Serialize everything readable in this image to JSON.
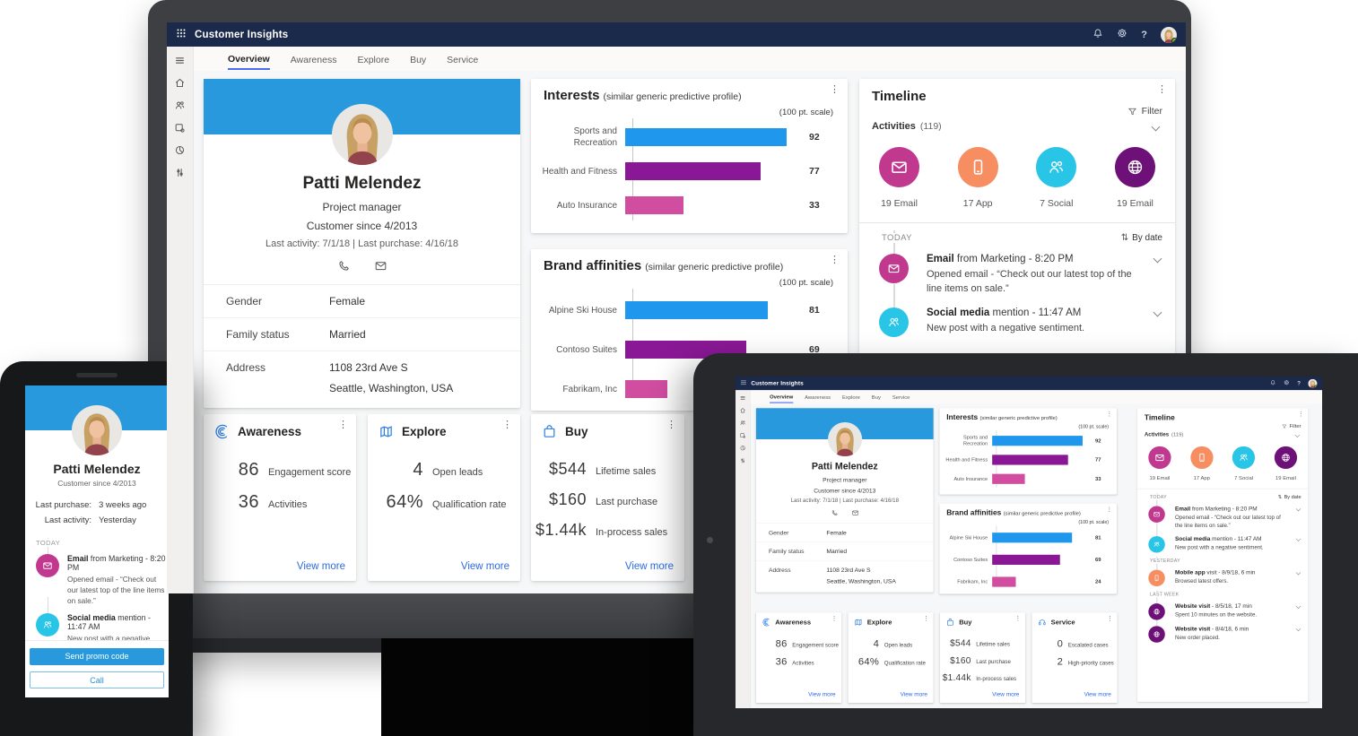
{
  "colors": {
    "navbar_bg": "#1b2a4a",
    "accent_blue": "#2899dc",
    "link_blue": "#2b6be4",
    "tab_underline": "#4f6bed",
    "bar_blue": "#1e97ec",
    "bar_purple": "#8a1896",
    "bar_pink": "#d04da0",
    "circle_magenta": "#c0398f",
    "circle_orange": "#f68e61",
    "circle_cyan": "#29c5e6",
    "circle_purple": "#6d1077",
    "presence_green": "#6bb700"
  },
  "navbar": {
    "title": "Customer Insights"
  },
  "tabs": [
    {
      "label": "Overview",
      "active": true
    },
    {
      "label": "Awareness"
    },
    {
      "label": "Explore"
    },
    {
      "label": "Buy"
    },
    {
      "label": "Service"
    }
  ],
  "profile": {
    "name": "Patti Melendez",
    "role": "Project manager",
    "since": "Customer since 4/2013",
    "activity_line": "Last activity: 7/1/18  |  Last purchase: 4/16/18",
    "fields": [
      {
        "label": "Gender",
        "value": "Female",
        "value2": ""
      },
      {
        "label": "Family status",
        "value": "Married",
        "value2": ""
      },
      {
        "label": "Address",
        "value": "1108 23rd Ave S",
        "value2": "Seattle, Washington, USA"
      }
    ]
  },
  "chart_data": [
    {
      "type": "bar",
      "title": "Interests",
      "subtitle": "(similar generic predictive profile)",
      "scale_label": "(100 pt. scale)",
      "xlim": [
        0,
        100
      ],
      "categories": [
        "Sports and Recreation",
        "Health and Fitness",
        "Auto Insurance"
      ],
      "values": [
        92,
        77,
        33
      ],
      "bar_colors": [
        "#1e97ec",
        "#8a1896",
        "#d04da0"
      ],
      "legend": "none",
      "grid": "off"
    },
    {
      "type": "bar",
      "title": "Brand affinities",
      "subtitle": "(similar generic predictive profile)",
      "scale_label": "(100 pt. scale)",
      "xlim": [
        0,
        100
      ],
      "categories": [
        "Alpine Ski House",
        "Contoso Suites",
        "Fabrikam, Inc"
      ],
      "values": [
        81,
        69,
        24
      ],
      "bar_colors": [
        "#1e97ec",
        "#8a1896",
        "#d04da0"
      ],
      "legend": "none",
      "grid": "off"
    }
  ],
  "timeline": {
    "title": "Timeline",
    "filter_label": "Filter",
    "activities_label": "Activities",
    "activities_count": "(119)",
    "sort_icon": "⇅",
    "sort_label": "By date",
    "summary": [
      {
        "label": "19 Email",
        "color": "#c0398f",
        "icon": "email-icon"
      },
      {
        "label": "17 App",
        "color": "#f68e61",
        "icon": "smartphone-icon"
      },
      {
        "label": "7 Social",
        "color": "#29c5e6",
        "icon": "people-icon"
      },
      {
        "label": "19 Email",
        "color": "#6d1077",
        "icon": "globe-icon"
      }
    ],
    "groups": [
      {
        "label": "TODAY",
        "entries": [
          {
            "color": "#c0398f",
            "icon": "email-icon",
            "bold": "Email",
            "rest": " from Marketing - 8:20 PM",
            "desc": "Opened  email - “Check out our latest top of the line items on sale.”"
          },
          {
            "color": "#29c5e6",
            "icon": "people-icon",
            "bold": "Social media",
            "rest": " mention - 11:47 AM",
            "desc": "New post with a negative sentiment."
          }
        ]
      },
      {
        "label": "YESTERDAY",
        "entries": [
          {
            "color": "#f68e61",
            "icon": "smartphone-icon",
            "bold": "Mobile app",
            "rest": " visit - 8/9/18, 6 min",
            "desc": "Browsed latest offers."
          }
        ]
      },
      {
        "label": "LAST WEEK",
        "entries": [
          {
            "color": "#6d1077",
            "icon": "globe-icon",
            "bold": "Website visit",
            "rest": " - 8/5/18, 17 min",
            "desc": "Spent 10 minutes on the website."
          },
          {
            "color": "#6d1077",
            "icon": "globe-icon",
            "bold": "Website visit",
            "rest": " - 8/4/18, 6 min",
            "desc": "New order placed."
          }
        ]
      }
    ]
  },
  "kpi_cards": [
    {
      "title": "Awareness",
      "icon": "awareness-icon",
      "link": "View more",
      "stats": [
        {
          "value": "86",
          "label": "Engagement score"
        },
        {
          "value": "36",
          "label": "Activities"
        }
      ]
    },
    {
      "title": "Explore",
      "icon": "map-icon",
      "link": "View more",
      "stats": [
        {
          "value": "4",
          "label": "Open leads"
        },
        {
          "value": "64%",
          "label": "Qualification rate"
        }
      ]
    },
    {
      "title": "Buy",
      "icon": "bag-icon",
      "link": "View more",
      "stats": [
        {
          "value": "$544",
          "label": "Lifetime sales"
        },
        {
          "value": "$160",
          "label": "Last purchase"
        },
        {
          "value": "$1.44k",
          "label": "In-process sales"
        }
      ]
    },
    {
      "title": "Service",
      "icon": "headset-icon",
      "link": "View more",
      "stats": [
        {
          "value": "0",
          "label": "Escalated cases"
        },
        {
          "value": "2",
          "label": "High-priority cases"
        }
      ]
    }
  ],
  "phone": {
    "name": "Patti Melendez",
    "since": "Customer since 4/2013",
    "info_rows": [
      {
        "label": "Last purchase:",
        "value": "3 weeks ago"
      },
      {
        "label": "Last activity:",
        "value": "Yesterday"
      }
    ],
    "group_label": "TODAY",
    "entries": [
      {
        "color": "#c0398f",
        "icon": "email-icon",
        "bold": "Email",
        "rest": " from Marketing - 8:20 PM",
        "desc": "Opened email - “Check out our latest top of the line items on sale.”"
      },
      {
        "color": "#29c5e6",
        "icon": "people-icon",
        "bold": "Social media",
        "rest": " mention - 11:47 AM",
        "desc": "New post with a negative sentiment."
      }
    ],
    "buttons": [
      {
        "label": "Send promo code"
      },
      {
        "label": "Call"
      }
    ]
  }
}
